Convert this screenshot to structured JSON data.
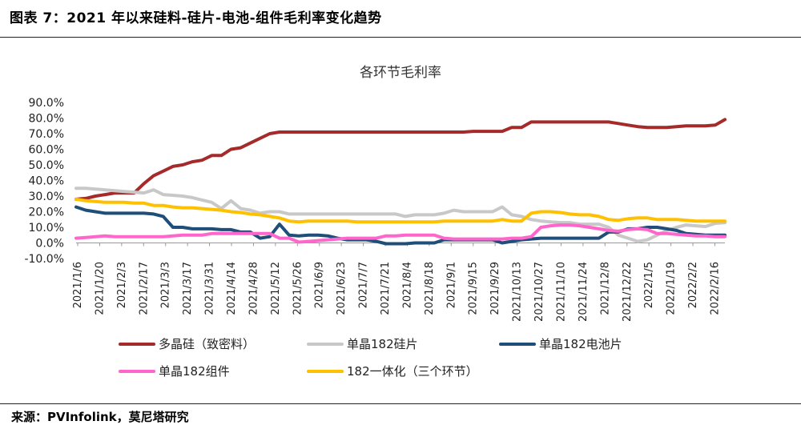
{
  "figure": {
    "title": "图表 7：2021 年以来硅料-硅片-电池-组件毛利率变化趋势",
    "source": "来源：PVInfolink，莫尼塔研究"
  },
  "chart_data": {
    "type": "line",
    "title": "各环节毛利率",
    "ylim": [
      -10,
      90
    ],
    "y_ticks": [
      "90.0%",
      "80.0%",
      "70.0%",
      "60.0%",
      "50.0%",
      "40.0%",
      "30.0%",
      "20.0%",
      "10.0%",
      "0.0%",
      "-10.0%"
    ],
    "x_tick_labels": [
      "2021/1/6",
      "2021/1/20",
      "2021/2/3",
      "2021/2/17",
      "2021/3/3",
      "2021/3/17",
      "2021/3/31",
      "2021/4/14",
      "2021/4/28",
      "2021/5/12",
      "2021/5/26",
      "2021/6/9",
      "2021/6/23",
      "2021/7/7",
      "2021/7/21",
      "2021/8/4",
      "2021/8/18",
      "2021/9/1",
      "2021/9/15",
      "2021/9/29",
      "2021/10/13",
      "2021/10/27",
      "2021/11/10",
      "2021/11/24",
      "2021/12/8",
      "2021/12/22",
      "2022/1/5",
      "2022/1/19",
      "2022/2/2",
      "2022/2/16"
    ],
    "legend_position": "bottom",
    "grid": false,
    "series": [
      {
        "name": "多晶硅（致密料）",
        "color": "#a52a2a",
        "values": [
          28,
          28.5,
          30,
          31,
          32,
          32,
          32,
          38,
          43,
          46,
          49,
          50,
          52,
          53,
          56,
          56,
          60,
          61,
          64,
          67,
          70,
          71,
          71,
          71,
          71,
          71,
          71,
          71,
          71,
          71,
          71,
          71,
          71,
          71,
          71,
          71,
          71,
          71,
          71,
          71,
          71,
          71.5,
          71.5,
          71.5,
          71.5,
          74,
          74,
          77.5,
          77.5,
          77.5,
          77.5,
          77.5,
          77.5,
          77.5,
          77.5,
          77.5,
          76.5,
          75.5,
          74.5,
          74,
          74,
          74,
          74.5,
          75,
          75,
          75,
          75.5,
          79
        ]
      },
      {
        "name": "单晶182硅片",
        "color": "#c8c8c8",
        "values": [
          35,
          35,
          34.5,
          34,
          33.5,
          33,
          32.5,
          32,
          34,
          31,
          30.5,
          30,
          29,
          27.5,
          26,
          22,
          27,
          22,
          21,
          19,
          20,
          20,
          18.5,
          18.5,
          18.5,
          18.5,
          18.5,
          18.5,
          18.5,
          18.5,
          18.5,
          18.5,
          18.5,
          18.5,
          17,
          18,
          18,
          18,
          19,
          21,
          20,
          20,
          20,
          20,
          23,
          18,
          17,
          15,
          14,
          13.5,
          13,
          13,
          12,
          12,
          12,
          10,
          5,
          3,
          1,
          2,
          5,
          8,
          10,
          11.5,
          11,
          10.5,
          12.5,
          13
        ]
      },
      {
        "name": "单晶182电池片",
        "color": "#1f4e79",
        "values": [
          23,
          21,
          20,
          19,
          19,
          19,
          19,
          19,
          18.5,
          17,
          10,
          10,
          9,
          9,
          9,
          8.5,
          8.5,
          7,
          7,
          3,
          4,
          12,
          5,
          4.5,
          5,
          5,
          4.5,
          3,
          2,
          2,
          2,
          1,
          -0.5,
          -0.5,
          -0.5,
          0,
          0,
          0,
          2,
          2,
          2,
          2,
          2,
          2,
          0,
          1,
          2,
          2.5,
          3,
          3,
          3,
          3,
          3,
          3,
          3,
          7,
          7,
          9,
          9,
          10,
          10,
          9,
          8,
          6,
          5.5,
          5,
          5,
          5
        ]
      },
      {
        "name": "单晶182组件",
        "color": "#ff66cc",
        "values": [
          3,
          3.5,
          4,
          4.5,
          4,
          4,
          4,
          4,
          4,
          4,
          4.5,
          5,
          5,
          5,
          6,
          6,
          6,
          6,
          6,
          6,
          6,
          3,
          3,
          0.5,
          1,
          1.5,
          2,
          2.5,
          3,
          3,
          3,
          3,
          4.5,
          4.5,
          5,
          5,
          5,
          5,
          3,
          2.5,
          2.5,
          2.5,
          2.5,
          2.5,
          2.5,
          3,
          3,
          4,
          10,
          11,
          11.5,
          11.5,
          11,
          10,
          9,
          8,
          7.5,
          8.5,
          9,
          8.5,
          6,
          6,
          5.5,
          5,
          4.5,
          4.5,
          4,
          4
        ]
      },
      {
        "name": "182一体化（三个环节）",
        "color": "#ffc000",
        "values": [
          28,
          27,
          26.5,
          26,
          26,
          26,
          25.5,
          25.5,
          24,
          24,
          23,
          22.5,
          22.5,
          22,
          21.5,
          21,
          20,
          19.5,
          18.5,
          18,
          17,
          16,
          14,
          13.5,
          14,
          14,
          14,
          14,
          14,
          13.5,
          13.5,
          13.5,
          13.5,
          13.5,
          13.5,
          13.5,
          13.5,
          13.5,
          14,
          14,
          14,
          14,
          14,
          14,
          15,
          14,
          14,
          19,
          20,
          20,
          19.5,
          18.5,
          18,
          18,
          17,
          15,
          14.5,
          15.5,
          16,
          16,
          15,
          15,
          15,
          14.5,
          14,
          14,
          14,
          14
        ]
      }
    ]
  }
}
